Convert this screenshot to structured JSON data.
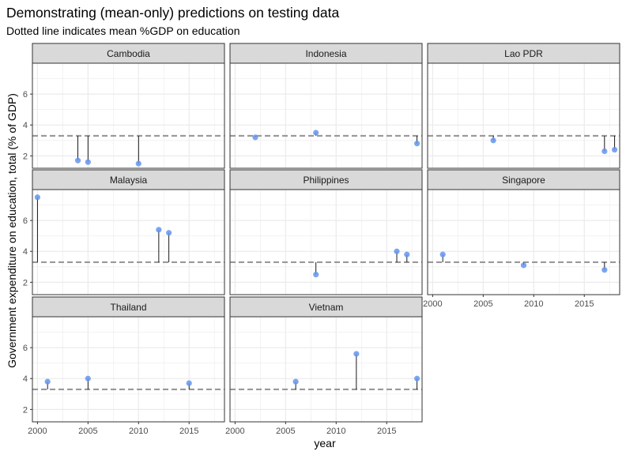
{
  "chart_data": {
    "type": "scatter",
    "title": "Demonstrating (mean-only) predictions on testing data",
    "subtitle": "Dotted line indicates mean %GDP on education",
    "xlabel": "year",
    "ylabel": "Government expenditure on education, total (% of GDP)",
    "xlim": [
      1999.5,
      2018.5
    ],
    "ylim": [
      1.2,
      8.0
    ],
    "x_ticks": [
      2000,
      2005,
      2010,
      2015
    ],
    "y_ticks": [
      2,
      4,
      6
    ],
    "mean_line": 3.3,
    "grid": true,
    "colors": {
      "point": "#6495ED",
      "mean_line": "#999999",
      "segment": "#000000",
      "strip_fill": "#D9D9D9",
      "panel_border": "#333333",
      "grid": "#EBEBEB"
    },
    "panels": [
      {
        "name": "Cambodia",
        "x": [
          2004,
          2005,
          2010
        ],
        "y": [
          1.7,
          1.6,
          1.5
        ]
      },
      {
        "name": "Indonesia",
        "x": [
          2002,
          2008,
          2018
        ],
        "y": [
          3.2,
          3.5,
          2.8
        ]
      },
      {
        "name": "Lao PDR",
        "x": [
          2006,
          2017,
          2018
        ],
        "y": [
          3.0,
          2.3,
          2.4
        ]
      },
      {
        "name": "Malaysia",
        "x": [
          2000,
          2012,
          2013
        ],
        "y": [
          7.5,
          5.4,
          5.2
        ]
      },
      {
        "name": "Philippines",
        "x": [
          2008,
          2016,
          2017
        ],
        "y": [
          2.5,
          4.0,
          3.8
        ]
      },
      {
        "name": "Singapore",
        "x": [
          2001,
          2009,
          2017
        ],
        "y": [
          3.8,
          3.1,
          2.8
        ]
      },
      {
        "name": "Thailand",
        "x": [
          2001,
          2005,
          2015
        ],
        "y": [
          3.8,
          4.0,
          3.7
        ]
      },
      {
        "name": "Vietnam",
        "x": [
          2006,
          2012,
          2018
        ],
        "y": [
          3.8,
          5.6,
          4.0
        ]
      }
    ]
  }
}
